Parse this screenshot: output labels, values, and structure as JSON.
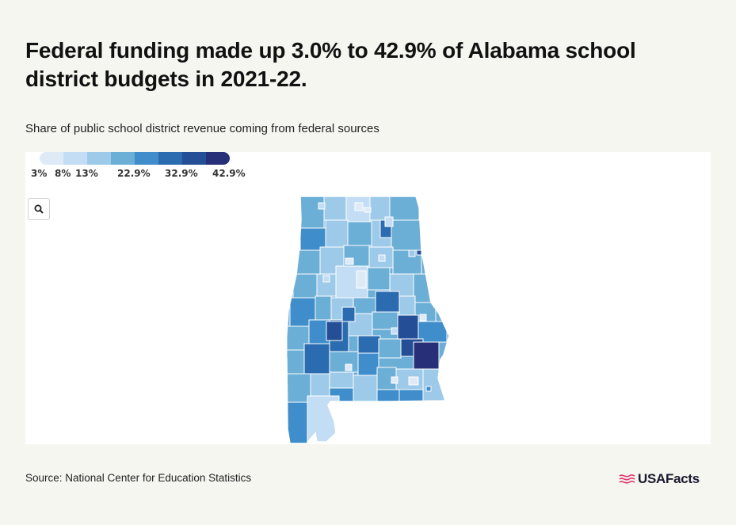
{
  "header": {
    "title": "Federal funding made up 3.0% to 42.9% of Alabama school district budgets in 2021-22.",
    "subtitle": "Share of public school district revenue coming from federal sources"
  },
  "legend": {
    "colors": [
      "#deebf7",
      "#c2ddf4",
      "#9ecae9",
      "#6baed6",
      "#3f8ecb",
      "#2b6cb0",
      "#244f96",
      "#262f78"
    ],
    "labels": [
      "3%",
      "8%",
      "13%",
      "22.9%",
      "32.9%",
      "42.9%"
    ]
  },
  "map": {
    "state": "Alabama",
    "zoom_icon": "magnifier-icon"
  },
  "footer": {
    "source": "Source: National Center for Education Statistics",
    "logo_text": "USAFacts",
    "logo_icon": "usafacts-flag-icon"
  }
}
